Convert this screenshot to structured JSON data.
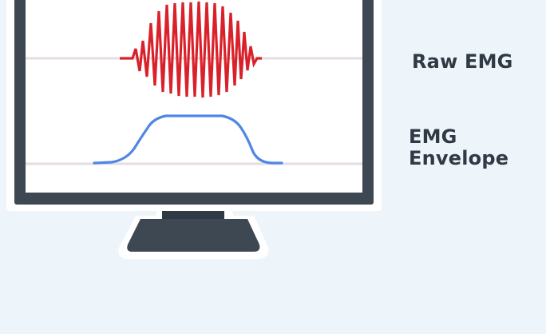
{
  "labels": {
    "raw_emg": "Raw EMG",
    "emg_envelope_line1": "EMG",
    "emg_envelope_line2": "Envelope"
  },
  "colors": {
    "background": "#eef5fa",
    "monitor_frame": "#3d4852",
    "screen": "#ffffff",
    "raw_signal": "#d9212b",
    "envelope_signal": "#4f86e6",
    "baseline": "#e6dde2"
  }
}
